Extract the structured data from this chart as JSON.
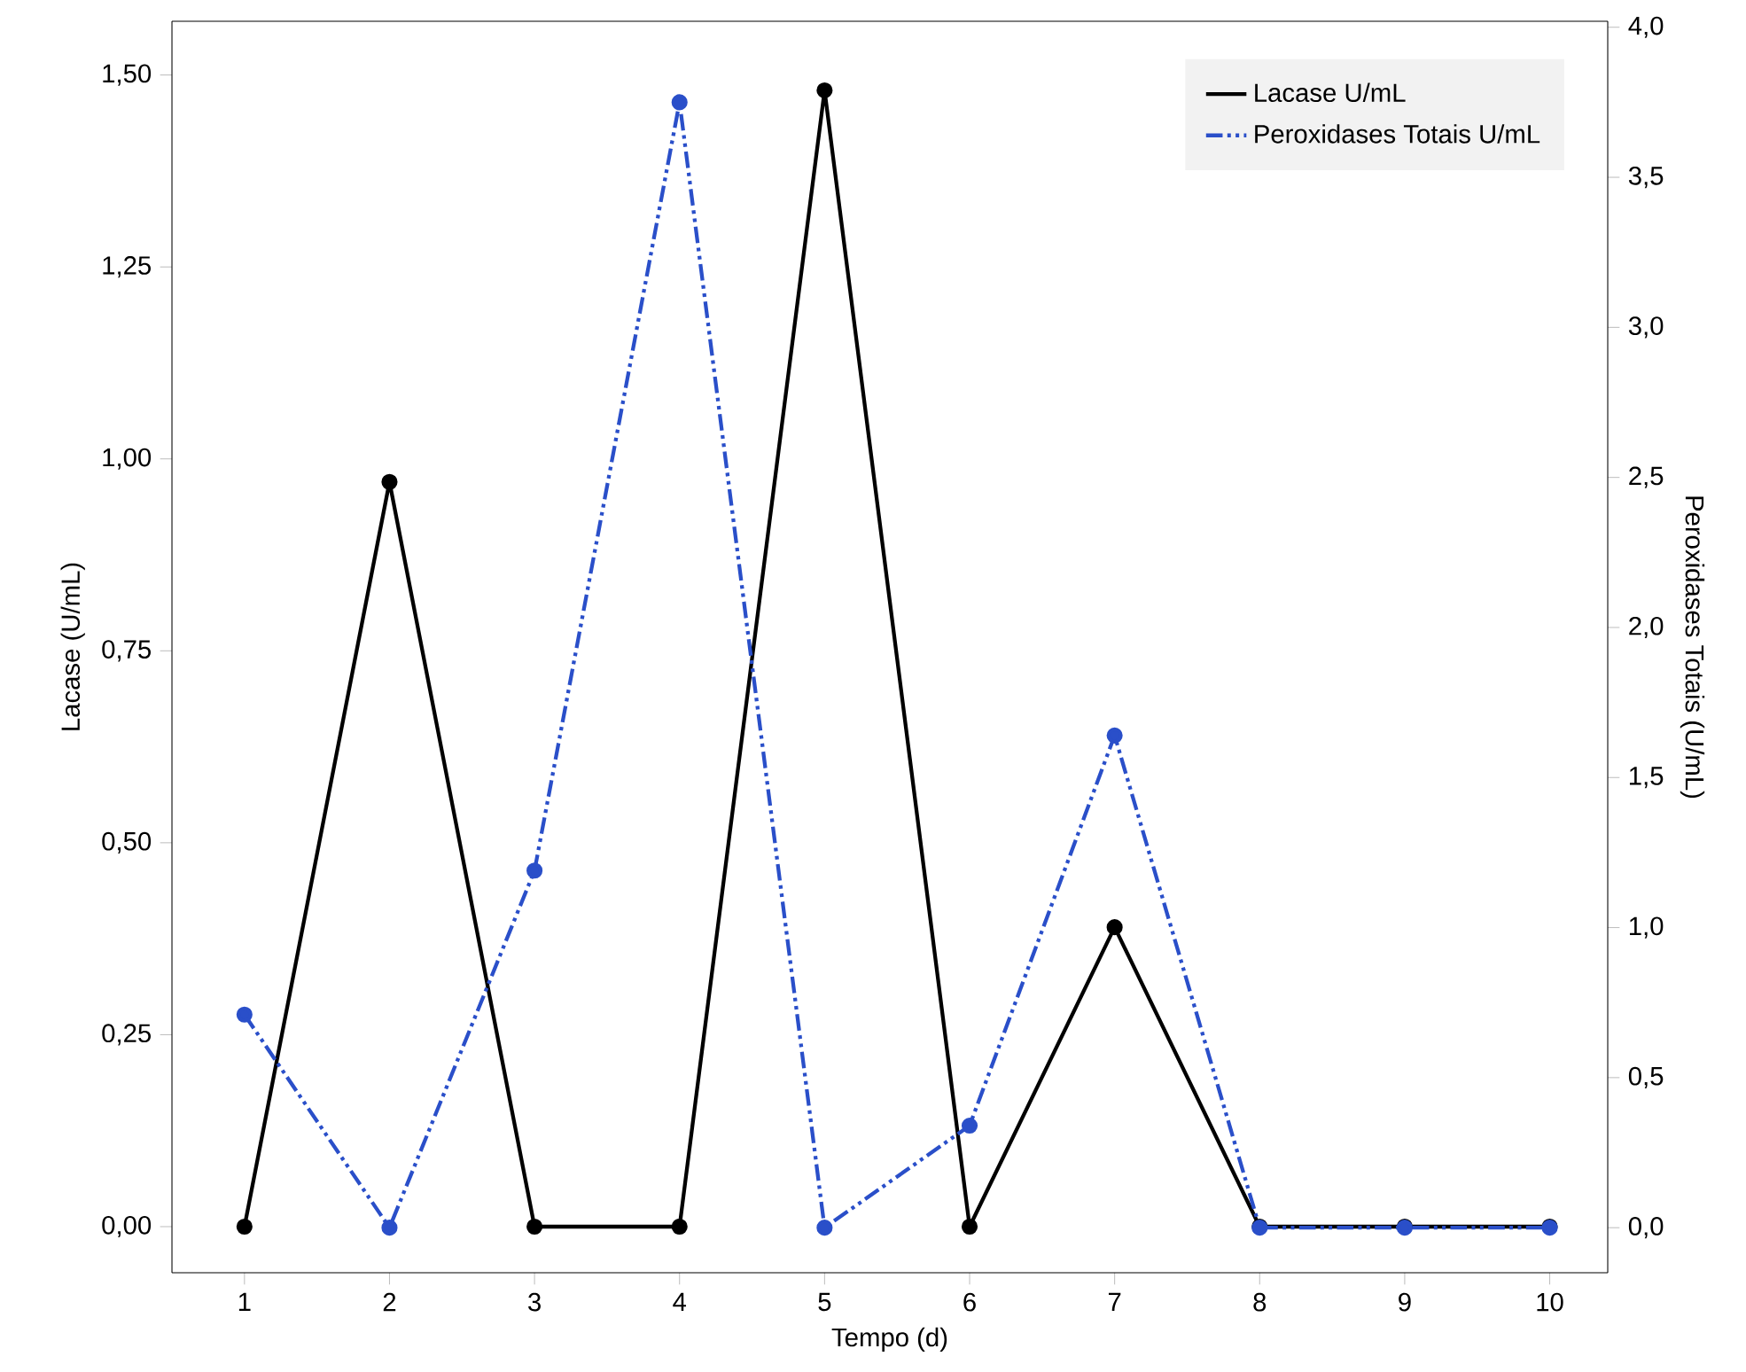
{
  "chart_data": {
    "type": "line",
    "xlabel": "Tempo (d)",
    "ylabel": "Lacase (U/mL)",
    "y2label": "Peroxidases Totais (U/mL)",
    "x": [
      1,
      2,
      3,
      4,
      5,
      6,
      7,
      8,
      9,
      10
    ],
    "series": [
      {
        "name": "Lacase U/mL",
        "color": "#000000",
        "line_style": "solid",
        "values": [
          0,
          0.97,
          0,
          0,
          1.48,
          0,
          0.39,
          0,
          0,
          0
        ]
      },
      {
        "name": "Peroxidases Totais U/mL",
        "color": "#2a4fc9",
        "line_style": "dashed",
        "axis": "y2",
        "values": [
          0.71,
          0,
          1.19,
          3.75,
          0,
          0.34,
          1.64,
          0,
          0,
          0
        ]
      }
    ],
    "xlim": [
      0.5,
      10.4
    ],
    "xticks": [
      1,
      2,
      3,
      4,
      5,
      6,
      7,
      8,
      9,
      10
    ],
    "ylim": [
      -0.06,
      1.57
    ],
    "yticks": [
      {
        "value": 0,
        "label": "0,00"
      },
      {
        "value": 0.25,
        "label": "0,25"
      },
      {
        "value": 0.5,
        "label": "0,50"
      },
      {
        "value": 0.75,
        "label": "0,75"
      },
      {
        "value": 1.0,
        "label": "1,00"
      },
      {
        "value": 1.25,
        "label": "1,25"
      },
      {
        "value": 1.5,
        "label": "1,50"
      }
    ],
    "y2lim": [
      -0.15,
      4.02
    ],
    "y2ticks": [
      {
        "value": 0,
        "label": "0,0"
      },
      {
        "value": 0.5,
        "label": "0,5"
      },
      {
        "value": 1.0,
        "label": "1,0"
      },
      {
        "value": 1.5,
        "label": "1,5"
      },
      {
        "value": 2.0,
        "label": "2,0"
      },
      {
        "value": 2.5,
        "label": "2,5"
      },
      {
        "value": 3.0,
        "label": "3,0"
      },
      {
        "value": 3.5,
        "label": "3,5"
      },
      {
        "value": 4.0,
        "label": "4,0"
      }
    ],
    "legend": "top right",
    "marker": "circle"
  }
}
